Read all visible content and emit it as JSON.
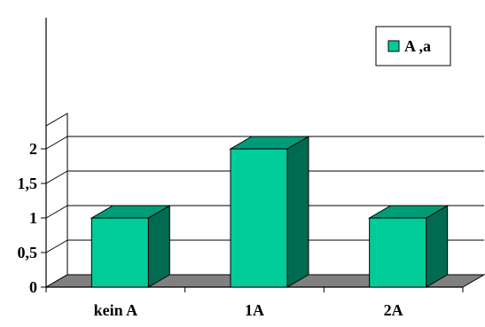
{
  "chart_data": {
    "type": "bar",
    "title": "",
    "xlabel": "",
    "ylabel": "",
    "categories": [
      "kein A",
      "1A",
      "2A"
    ],
    "series": [
      {
        "name": "A ,a",
        "values": [
          1,
          2,
          1
        ],
        "color": "#00CC99",
        "side_color": "#006B50",
        "top_color": "#009C77"
      }
    ],
    "ylim": [
      0,
      2
    ],
    "yticks": [
      {
        "value": 0,
        "label": "0"
      },
      {
        "value": 0.5,
        "label": "0,5"
      },
      {
        "value": 1,
        "label": "1"
      },
      {
        "value": 1.5,
        "label": "1,5"
      },
      {
        "value": 2,
        "label": "2"
      }
    ],
    "grid": true,
    "three_d": true,
    "legend": {
      "position": "top-right",
      "entries": [
        "A ,a"
      ]
    },
    "colors": {
      "floor": "#808080",
      "grid": "#000000"
    }
  }
}
